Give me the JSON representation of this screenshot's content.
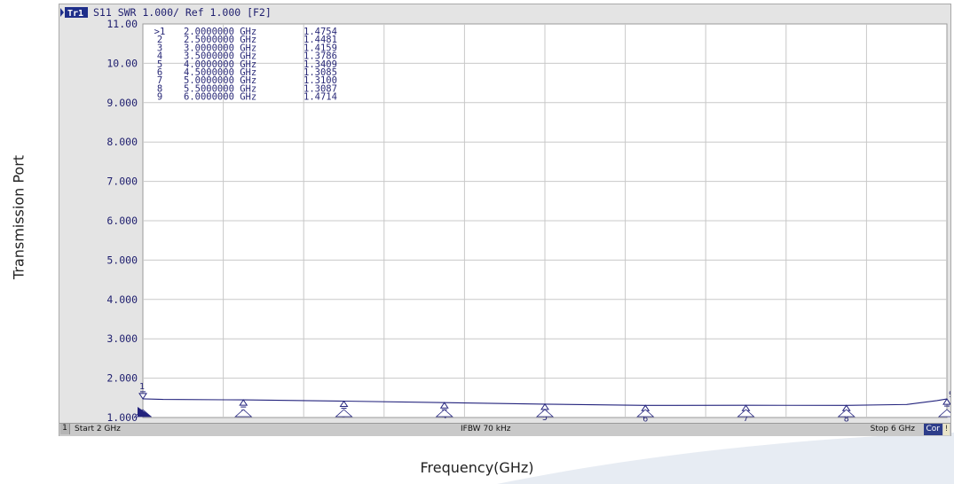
{
  "figure": {
    "ylabel": "Transmission Port",
    "xlabel": "Frequency(GHz)"
  },
  "trace_header": {
    "tag": "Tr1",
    "text": "S11 SWR 1.000/ Ref 1.000 [F2]"
  },
  "status_bar": {
    "channel": "1",
    "start": "Start 2 GHz",
    "ifbw": "IFBW 70 kHz",
    "stop": "Stop 6 GHz",
    "cor": "Cor",
    "flag": "!"
  },
  "colors": {
    "trace": "#23237d",
    "text": "#2a2a78",
    "grid": "#c8c8c8",
    "plot_bg": "#ffffff",
    "frame_bg": "#e4e4e4",
    "cor_badge": "#2d3d8a"
  },
  "chart_data": {
    "type": "line",
    "title": "",
    "xlabel": "Frequency(GHz)",
    "ylabel": "Transmission Port",
    "xlim": [
      2,
      6
    ],
    "ylim": [
      1.0,
      11.0
    ],
    "y_tick_labels": [
      "11.00",
      "10.00",
      "9.000",
      "8.000",
      "7.000",
      "6.000",
      "5.000",
      "4.000",
      "3.000",
      "2.000",
      "1.000"
    ],
    "grid": true,
    "series": [
      {
        "x": [
          2.0,
          2.1,
          2.5,
          3.0,
          3.5,
          4.0,
          4.5,
          5.0,
          5.5,
          5.8,
          5.95,
          6.0
        ],
        "y": [
          1.4754,
          1.46,
          1.4481,
          1.4159,
          1.3786,
          1.3409,
          1.3085,
          1.31,
          1.3087,
          1.33,
          1.43,
          1.4714
        ]
      }
    ],
    "markers": [
      {
        "label": "1",
        "marker_id": ">1",
        "freq": "2.0000000 GHz",
        "value": "1.4754",
        "x": 2.0,
        "y": 1.4754
      },
      {
        "label": "2",
        "marker_id": "2",
        "freq": "2.5000000 GHz",
        "value": "1.4481",
        "x": 2.5,
        "y": 1.4481
      },
      {
        "label": "3",
        "marker_id": "3",
        "freq": "3.0000000 GHz",
        "value": "1.4159",
        "x": 3.0,
        "y": 1.4159
      },
      {
        "label": "4",
        "marker_id": "4",
        "freq": "3.5000000 GHz",
        "value": "1.3786",
        "x": 3.5,
        "y": 1.3786
      },
      {
        "label": "5",
        "marker_id": "5",
        "freq": "4.0000000 GHz",
        "value": "1.3409",
        "x": 4.0,
        "y": 1.3409
      },
      {
        "label": "6",
        "marker_id": "6",
        "freq": "4.5000000 GHz",
        "value": "1.3085",
        "x": 4.5,
        "y": 1.3085
      },
      {
        "label": "7",
        "marker_id": "7",
        "freq": "5.0000000 GHz",
        "value": "1.3100",
        "x": 5.0,
        "y": 1.31
      },
      {
        "label": "8",
        "marker_id": "8",
        "freq": "5.5000000 GHz",
        "value": "1.3087",
        "x": 5.5,
        "y": 1.3087
      },
      {
        "label": "9",
        "marker_id": "9",
        "freq": "6.0000000 GHz",
        "value": "1.4714",
        "x": 6.0,
        "y": 1.4714
      }
    ]
  }
}
